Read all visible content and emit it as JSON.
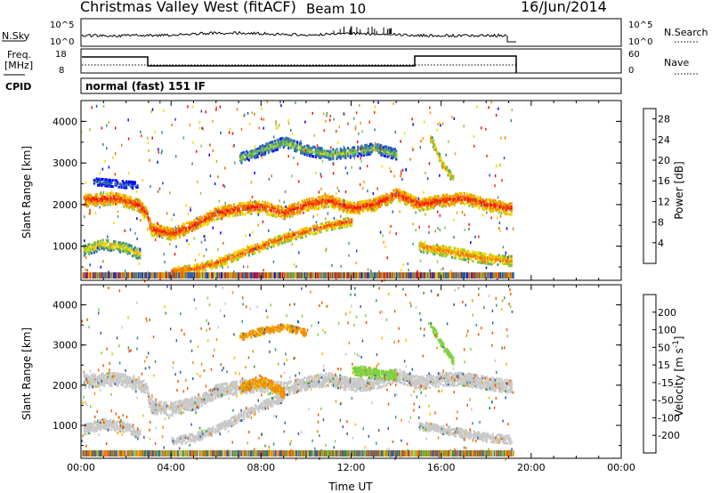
{
  "header": {
    "station": "Christmas Valley West (fitACF)",
    "beam": "Beam 10",
    "date": "16/Jun/2014"
  },
  "strips": {
    "nsky_label": "N.Sky",
    "nsearch_label": "N.Search",
    "nsky_ticks": [
      "10^5",
      "10^0"
    ],
    "nsearch_ticks": [
      "10^5",
      "10^0"
    ],
    "freq_label_1": "Freq.",
    "freq_label_2": "[MHz]",
    "freq_ticks": [
      "18",
      "8"
    ],
    "nave_label": "Nave",
    "nave_ticks": [
      "60",
      "0"
    ],
    "cpid_label": "CPID",
    "cpid_value": "normal (fast) 151 IF"
  },
  "colors": {
    "power_scale": [
      "#0000ff",
      "#1f4fc8",
      "#3a7a9c",
      "#4f9e6a",
      "#88c640",
      "#f0d800",
      "#f0a000",
      "#f07000",
      "#f03000",
      "#ff0000"
    ],
    "velocity_scale": [
      "#ff0000",
      "#f05a00",
      "#f09000",
      "#f0c000",
      "#c8c8c8",
      "#c8c8c8",
      "#80d040",
      "#3a9a50",
      "#3060a0",
      "#1a1ad8"
    ],
    "ground_scatter": "#bebebe"
  },
  "chart_data": [
    {
      "type": "heatmap",
      "name": "power",
      "xlabel": "",
      "ylabel": "Slant Range [km]",
      "x_ticks": [
        "00:00",
        "04:00",
        "08:00",
        "12:00",
        "16:00",
        "20:00",
        "00:00"
      ],
      "xlim_hours": [
        0,
        24
      ],
      "y_ticks": [
        "1000",
        "2000",
        "3000",
        "4000"
      ],
      "ylim_km": [
        180,
        4500
      ],
      "colorbar_label": "Power [dB]",
      "colorbar_ticks": [
        "4",
        "8",
        "12",
        "16",
        "20",
        "24",
        "28"
      ],
      "colorbar_range": [
        0,
        30
      ],
      "data_end_hours": 19.2,
      "bands": [
        {
          "km": [
            [
              0.1,
              2100
            ],
            [
              1.5,
              2150
            ],
            [
              2.5,
              2000
            ],
            [
              2.9,
              1800
            ],
            [
              3.1,
              1400
            ],
            [
              4,
              1300
            ],
            [
              5,
              1500
            ],
            [
              6,
              1800
            ],
            [
              7,
              1900
            ],
            [
              8,
              1950
            ],
            [
              9,
              1800
            ],
            [
              10,
              2000
            ],
            [
              11,
              2100
            ],
            [
              12,
              1900
            ],
            [
              13,
              2000
            ],
            [
              14,
              2250
            ],
            [
              15,
              2000
            ],
            [
              16,
              2100
            ],
            [
              17,
              2150
            ],
            [
              18,
              2000
            ],
            [
              19.1,
              1900
            ]
          ],
          "width": 300,
          "power": 26
        },
        {
          "km": [
            [
              0.1,
              900
            ],
            [
              1,
              1050
            ],
            [
              2,
              950
            ],
            [
              2.6,
              800
            ]
          ],
          "width": 260,
          "power": 18
        },
        {
          "km": [
            [
              4,
              400
            ],
            [
              5,
              450
            ],
            [
              6,
              600
            ],
            [
              7,
              800
            ],
            [
              8,
              1000
            ],
            [
              9,
              1200
            ],
            [
              10,
              1350
            ],
            [
              11,
              1500
            ],
            [
              12,
              1600
            ]
          ],
          "width": 220,
          "power": 24
        },
        {
          "km": [
            [
              15,
              1000
            ],
            [
              16,
              900
            ],
            [
              17,
              800
            ],
            [
              18,
              700
            ],
            [
              19.1,
              650
            ]
          ],
          "width": 260,
          "power": 22
        },
        {
          "km": [
            [
              7,
              3100
            ],
            [
              8,
              3300
            ],
            [
              9,
              3500
            ],
            [
              10,
              3300
            ],
            [
              11,
              3200
            ],
            [
              12,
              3250
            ],
            [
              13,
              3350
            ],
            [
              14,
              3200
            ]
          ],
          "width": 240,
          "power": 14
        },
        {
          "km": [
            [
              15.5,
              3600
            ],
            [
              16,
              3000
            ],
            [
              16.5,
              2600
            ]
          ],
          "width": 160,
          "power": 20
        },
        {
          "km": [
            [
              0.5,
              2550
            ],
            [
              1.5,
              2500
            ],
            [
              2.5,
              2450
            ]
          ],
          "width": 160,
          "power": 8
        }
      ]
    },
    {
      "type": "heatmap",
      "name": "velocity",
      "xlabel": "Time UT",
      "ylabel": "Slant Range [km]",
      "x_ticks": [
        "00:00",
        "04:00",
        "08:00",
        "12:00",
        "16:00",
        "20:00",
        "00:00"
      ],
      "xlim_hours": [
        0,
        24
      ],
      "y_ticks": [
        "1000",
        "2000",
        "3000",
        "4000"
      ],
      "ylim_km": [
        180,
        4500
      ],
      "colorbar_label": "Velocity [m s^-1]",
      "colorbar_ticks": [
        "200",
        "100",
        "50",
        "15",
        "-15",
        "-50",
        "-100",
        "-200"
      ],
      "data_end_hours": 19.2,
      "bands": [
        {
          "km": [
            [
              0.1,
              2100
            ],
            [
              1.5,
              2150
            ],
            [
              2.5,
              2050
            ],
            [
              2.9,
              1900
            ],
            [
              3.1,
              1450
            ],
            [
              4,
              1400
            ],
            [
              5,
              1550
            ],
            [
              6,
              1850
            ],
            [
              7,
              1950
            ],
            [
              8,
              2000
            ],
            [
              9,
              1900
            ],
            [
              10,
              2050
            ],
            [
              11,
              2150
            ],
            [
              12,
              2000
            ],
            [
              13,
              2050
            ],
            [
              14,
              2250
            ],
            [
              15,
              2050
            ],
            [
              16,
              2150
            ],
            [
              17,
              2150
            ],
            [
              18,
              2050
            ],
            [
              19.1,
              1950
            ]
          ],
          "width": 320,
          "velocity": 0
        },
        {
          "km": [
            [
              0.1,
              900
            ],
            [
              1,
              1050
            ],
            [
              2,
              950
            ],
            [
              2.6,
              800
            ]
          ],
          "width": 260,
          "velocity": 0
        },
        {
          "km": [
            [
              4,
              600
            ],
            [
              5,
              700
            ],
            [
              6,
              900
            ],
            [
              7,
              1200
            ],
            [
              8,
              1500
            ],
            [
              9,
              1700
            ]
          ],
          "width": 220,
          "velocity": 0
        },
        {
          "km": [
            [
              7,
              1900
            ],
            [
              8,
              2100
            ],
            [
              9,
              1800
            ]
          ],
          "width": 240,
          "velocity": -60
        },
        {
          "km": [
            [
              15,
              1000
            ],
            [
              16,
              900
            ],
            [
              17,
              800
            ],
            [
              18,
              700
            ],
            [
              19.1,
              650
            ]
          ],
          "width": 220,
          "velocity": 0
        },
        {
          "km": [
            [
              7,
              3200
            ],
            [
              8,
              3350
            ],
            [
              9,
              3450
            ],
            [
              10,
              3300
            ]
          ],
          "width": 180,
          "velocity": -60
        },
        {
          "km": [
            [
              12,
              2400
            ],
            [
              13,
              2300
            ],
            [
              14,
              2250
            ]
          ],
          "width": 260,
          "velocity": 30
        },
        {
          "km": [
            [
              15.5,
              3500
            ],
            [
              16,
              3000
            ],
            [
              16.5,
              2600
            ]
          ],
          "width": 160,
          "velocity": 30
        }
      ]
    }
  ]
}
